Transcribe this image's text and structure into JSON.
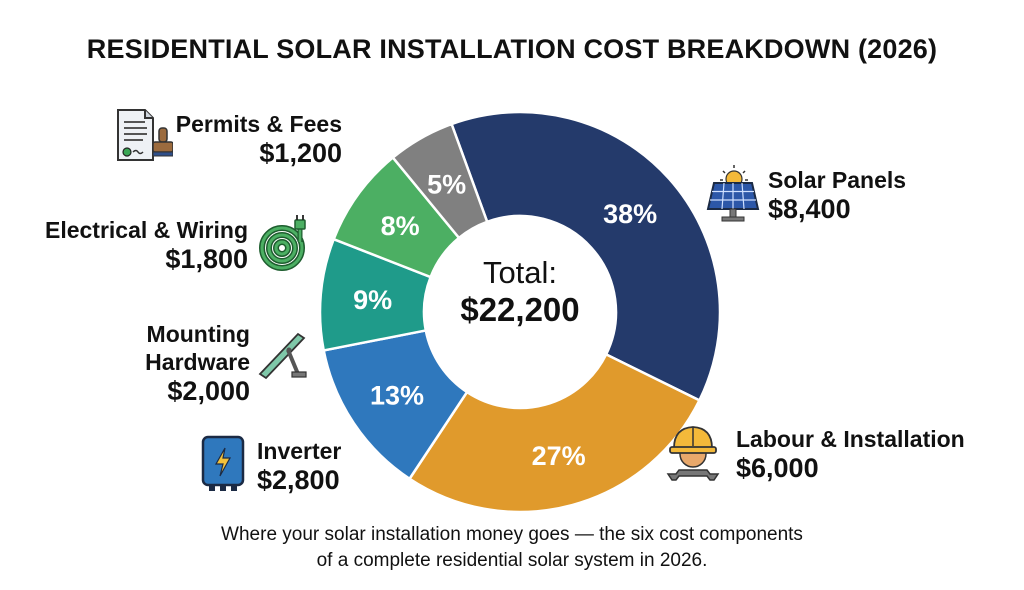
{
  "title": "RESIDENTIAL SOLAR INSTALLATION COST BREAKDOWN (2026)",
  "center": {
    "line1": "Total:",
    "line2": "$22,200"
  },
  "caption": {
    "line1": "Where your solar installation money goes — the six cost components",
    "line2": "of a complete residential solar system in 2026."
  },
  "labels": {
    "solar": {
      "name": "Solar Panels",
      "amount": "$8,400",
      "pct": "38%"
    },
    "labour": {
      "name": "Labour & Installation",
      "amount": "$6,000",
      "pct": "27%"
    },
    "inverter": {
      "name": "Inverter",
      "amount": "$2,800",
      "pct": "13%"
    },
    "mounting": {
      "name1": "Mounting",
      "name2": "Hardware",
      "amount": "$2,000",
      "pct": "9%"
    },
    "electrical": {
      "name": "Electrical & Wiring",
      "amount": "$1,800",
      "pct": "8%"
    },
    "permits": {
      "name": "Permits & Fees",
      "amount": "$1,200",
      "pct": "5%"
    }
  },
  "chart_data": {
    "type": "pie",
    "subtype": "donut",
    "title": "RESIDENTIAL SOLAR INSTALLATION COST BREAKDOWN (2026)",
    "center_label": "Total: $22,200",
    "total": 22200,
    "categories": [
      "Solar Panels",
      "Labour & Installation",
      "Inverter",
      "Mounting Hardware",
      "Electrical & Wiring",
      "Permits & Fees"
    ],
    "values": [
      8400,
      6000,
      2800,
      2000,
      1800,
      1200
    ],
    "percentages": [
      38,
      27,
      13,
      9,
      8,
      5
    ],
    "colors": [
      "#243a6b",
      "#e09a2c",
      "#2f78bd",
      "#1f9b8a",
      "#4caf63",
      "#808080"
    ],
    "caption": "Where your solar installation money goes — the six cost components of a complete residential solar system in 2026."
  }
}
